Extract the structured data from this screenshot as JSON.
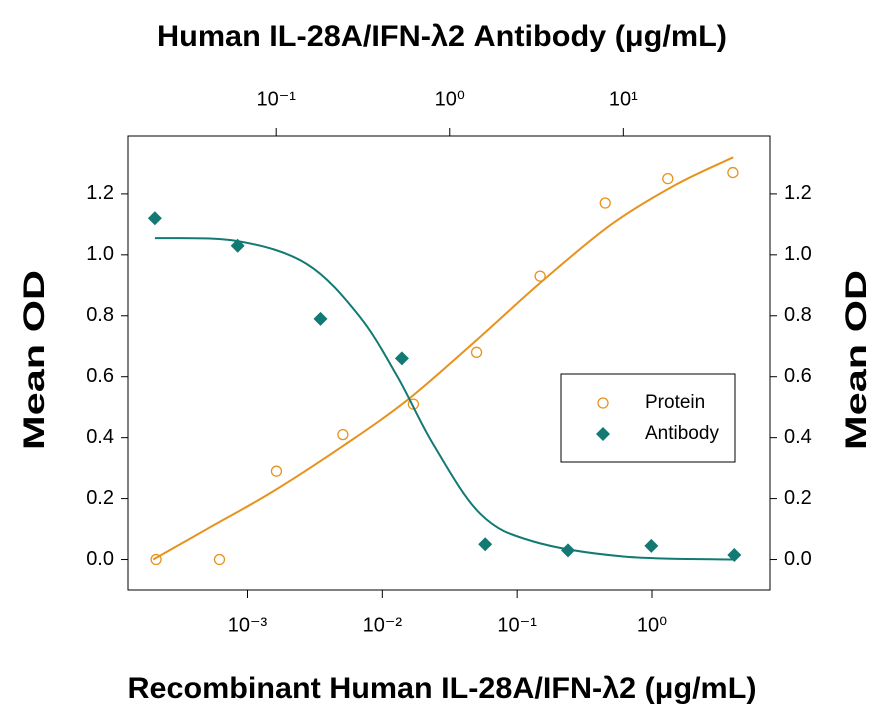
{
  "chart_data": {
    "type": "scatter",
    "title": "Human IL-28A/IFN-λ2 Antibody (μg/mL)",
    "xlabel": "Recombinant Human IL-28A/IFN-λ2 (μg/mL)",
    "ylabel": "Mean OD",
    "y2label": "Mean OD",
    "xscale": "log",
    "x2scale": "log",
    "xlim": [
      0.00013,
      7.5
    ],
    "xticks": [
      {
        "value": 0.001,
        "label": "10⁻³"
      },
      {
        "value": 0.01,
        "label": "10⁻²"
      },
      {
        "value": 0.1,
        "label": "10⁻¹"
      },
      {
        "value": 1,
        "label": "10⁰"
      }
    ],
    "x2lim": [
      0.014,
      70
    ],
    "x2ticks": [
      {
        "value": 0.1,
        "label": "10⁻¹"
      },
      {
        "value": 1,
        "label": "10⁰"
      },
      {
        "value": 10,
        "label": "10¹"
      }
    ],
    "ylim": [
      -0.1,
      1.39
    ],
    "yticks": [
      {
        "value": 0,
        "label": "0.0"
      },
      0.2,
      0.4,
      0.6,
      0.8,
      {
        "value": 1,
        "label": "1.0"
      },
      1.2
    ],
    "y2lim": [
      -0.1,
      1.39
    ],
    "y2ticks": [
      {
        "value": 0,
        "label": "0.0"
      },
      0.2,
      0.4,
      0.6,
      0.8,
      {
        "value": 1,
        "label": "1.0"
      },
      1.2
    ],
    "legend": "right",
    "series": [
      {
        "name": "Protein",
        "color": "#e8921e",
        "marker": "circle",
        "axis": "x",
        "x": [
          0.00021,
          0.00062,
          0.00164,
          0.0051,
          0.017,
          0.05,
          0.148,
          0.45,
          1.31,
          3.98
        ],
        "values": [
          0.0,
          0.0,
          0.29,
          0.41,
          0.51,
          0.68,
          0.93,
          1.17,
          1.25,
          1.27
        ],
        "fit": {
          "x": [
            0.0002,
            0.0005,
            0.0015,
            0.005,
            0.015,
            0.05,
            0.15,
            0.5,
            1.5,
            4
          ],
          "values": [
            0.0,
            0.1,
            0.22,
            0.37,
            0.52,
            0.72,
            0.91,
            1.1,
            1.23,
            1.32
          ]
        }
      },
      {
        "name": "Antibody",
        "color": "#137a73",
        "marker": "diamond",
        "axis": "x2",
        "x": [
          0.02,
          0.06,
          0.18,
          0.53,
          1.6,
          4.8,
          14.5,
          43.6
        ],
        "values": [
          1.12,
          1.03,
          0.79,
          0.66,
          0.05,
          0.03,
          0.045,
          0.015
        ],
        "fit": {
          "x": [
            0.02,
            0.06,
            0.15,
            0.3,
            0.5,
            0.8,
            1.5,
            3,
            10,
            43
          ],
          "values": [
            1.055,
            1.045,
            0.97,
            0.8,
            0.6,
            0.38,
            0.15,
            0.06,
            0.01,
            0.0
          ]
        }
      }
    ]
  }
}
